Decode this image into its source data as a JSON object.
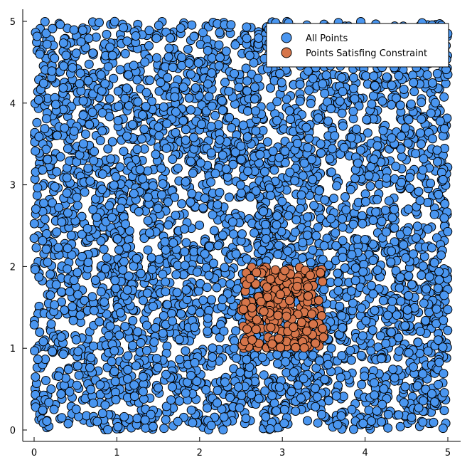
{
  "chart_data": {
    "type": "scatter",
    "title": "",
    "xlabel": "",
    "ylabel": "",
    "xlim": [
      -0.15,
      5.15
    ],
    "ylim": [
      -0.13,
      5.15
    ],
    "xticks": [
      0,
      1,
      2,
      3,
      4,
      5
    ],
    "yticks": [
      0,
      1,
      2,
      3,
      4,
      5
    ],
    "xtick_labels": [
      "0",
      "1",
      "2",
      "3",
      "4",
      "5"
    ],
    "ytick_labels": [
      "0",
      "1",
      "2",
      "3",
      "4",
      "5"
    ],
    "grid": false,
    "legend_position": "top-right",
    "series": [
      {
        "name": "All Points",
        "color": "#4a96f0",
        "distribution": "uniform",
        "count": 4000,
        "x_range": [
          0,
          5
        ],
        "y_range": [
          0,
          5
        ]
      },
      {
        "name": "Points Satisfing Constraint",
        "color": "#d6754a",
        "distribution": "uniform",
        "count": 260,
        "x_range": [
          2.5,
          3.5
        ],
        "y_range": [
          1,
          2
        ]
      }
    ]
  }
}
